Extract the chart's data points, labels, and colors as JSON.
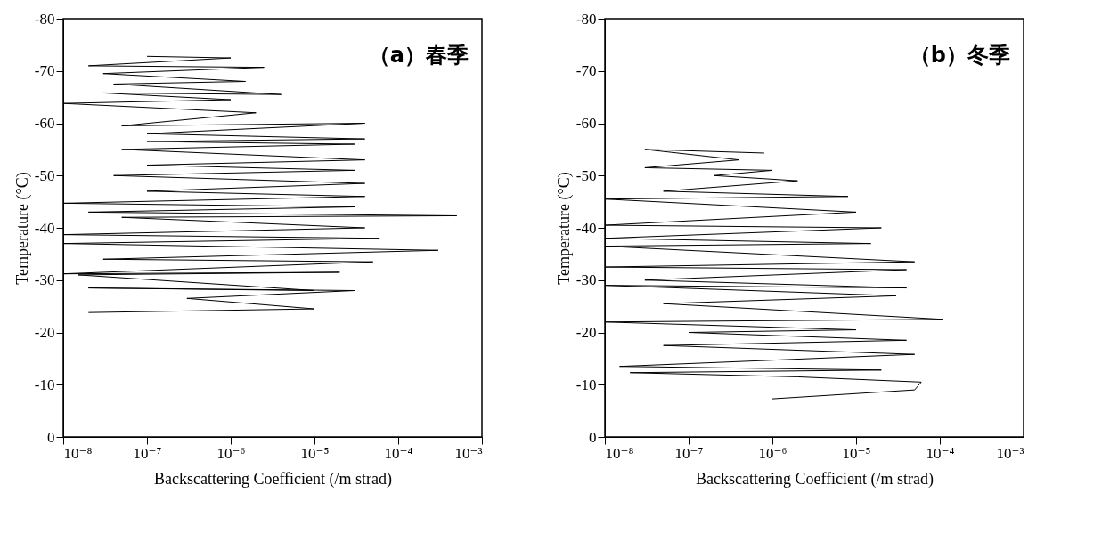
{
  "chart_data": [
    {
      "type": "line",
      "annotations": [
        "（a）春季"
      ],
      "xlabel": "Backscattering Coefficient  (/m strad)",
      "ylabel": "Temperature  (°C)",
      "log": "x",
      "xlim": [
        1e-08,
        0.001
      ],
      "xticks": [
        {
          "value": 1e-08,
          "label": "10⁻⁸"
        },
        {
          "value": 1e-07,
          "label": "10⁻⁷"
        },
        {
          "value": 1e-06,
          "label": "10⁻⁶"
        },
        {
          "value": 1e-05,
          "label": "10⁻⁵"
        },
        {
          "value": 0.0001,
          "label": "10⁻⁴"
        },
        {
          "value": 0.001,
          "label": "10⁻³"
        }
      ],
      "ylim": [
        0,
        -80
      ],
      "yticks": [
        0,
        -10,
        -20,
        -30,
        -40,
        -50,
        -60,
        -70,
        -80
      ],
      "series": [
        {
          "color": "#000000",
          "x": [
            2e-08,
            1e-05,
            3e-07,
            3e-05,
            2e-08,
            1e-05,
            1.5e-08,
            2e-05,
            1e-08,
            5e-05,
            3e-08,
            0.0003,
            1e-08,
            6e-05,
            1e-08,
            4e-05,
            5e-08,
            0.0005,
            2e-08,
            3e-05,
            1e-08,
            4e-05,
            1e-07,
            4e-05,
            4e-08,
            3e-05,
            1e-07,
            4e-05,
            5e-08,
            3e-05,
            1e-07,
            4e-05,
            1e-07,
            4e-05,
            5e-08,
            2e-06,
            1e-08,
            1e-06,
            3e-08,
            4e-06,
            4e-08,
            1.5e-06,
            3e-08,
            2.5e-06,
            2e-08,
            1e-06,
            1e-07
          ],
          "values": [
            -23.8,
            -24.5,
            -26.5,
            -28,
            -28.5,
            -28,
            -31,
            -31.5,
            -31.2,
            -33.5,
            -34,
            -35.7,
            -37,
            -38,
            -38.7,
            -40,
            -42,
            -42.3,
            -43,
            -44,
            -44.7,
            -46,
            -47,
            -48.5,
            -50,
            -51,
            -52,
            -53,
            -55,
            -56,
            -56.5,
            -57,
            -58,
            -60,
            -59.5,
            -62,
            -63.8,
            -64.5,
            -65.8,
            -65.5,
            -67.5,
            -68,
            -69.5,
            -70.7,
            -71,
            -72.5,
            -72.8
          ]
        }
      ]
    },
    {
      "type": "line",
      "annotations": [
        "（b）冬季"
      ],
      "xlabel": "Backscattering Coefficient  (/m strad)",
      "ylabel": "Temperature  (°C)",
      "log": "x",
      "xlim": [
        1e-08,
        0.001
      ],
      "xticks": [
        {
          "value": 1e-08,
          "label": "10⁻⁸"
        },
        {
          "value": 1e-07,
          "label": "10⁻⁷"
        },
        {
          "value": 1e-06,
          "label": "10⁻⁶"
        },
        {
          "value": 1e-05,
          "label": "10⁻⁵"
        },
        {
          "value": 0.0001,
          "label": "10⁻⁴"
        },
        {
          "value": 0.001,
          "label": "10⁻³"
        }
      ],
      "ylim": [
        0,
        -80
      ],
      "yticks": [
        0,
        -10,
        -20,
        -30,
        -40,
        -50,
        -60,
        -70,
        -80
      ],
      "series": [
        {
          "color": "#000000",
          "x": [
            1e-06,
            5e-05,
            6e-05,
            2e-06,
            2e-08,
            2e-05,
            1.5e-08,
            5e-05,
            5e-08,
            4e-05,
            1e-07,
            1e-05,
            1e-08,
            0.00011,
            5e-08,
            3e-05,
            1e-08,
            4e-05,
            3e-08,
            4e-05,
            1e-08,
            5e-05,
            1e-08,
            1.5e-05,
            1e-08,
            2e-05,
            1e-08,
            1e-05,
            1e-08,
            8e-06,
            5e-08,
            2e-06,
            2e-07,
            1e-06,
            3e-08,
            4e-07,
            3e-08,
            8e-07
          ],
          "values": [
            -7.3,
            -9,
            -10.5,
            -11.5,
            -12.3,
            -12.8,
            -13.5,
            -15.8,
            -17.5,
            -18.5,
            -20,
            -20.5,
            -22,
            -22.5,
            -25.5,
            -27,
            -29,
            -28.5,
            -30,
            -32,
            -32.5,
            -33.5,
            -36.5,
            -37,
            -38,
            -40,
            -40.5,
            -43,
            -45.5,
            -46,
            -47,
            -49,
            -50,
            -51,
            -51.5,
            -53,
            -55,
            -54.3
          ]
        }
      ]
    }
  ]
}
